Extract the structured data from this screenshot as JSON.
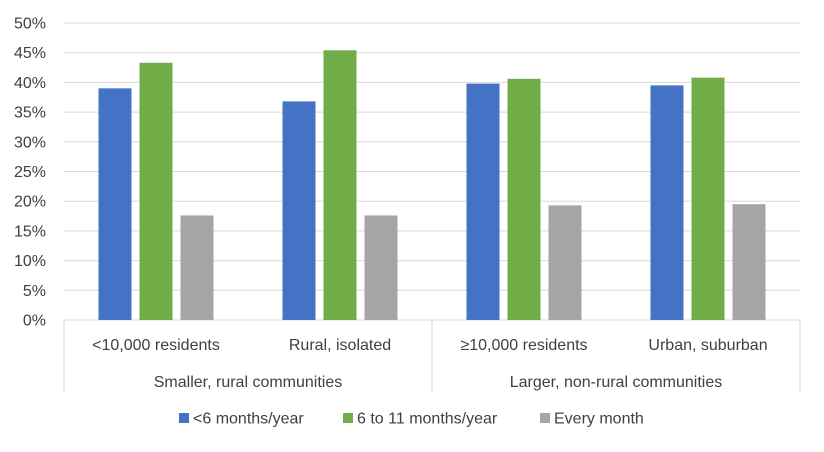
{
  "chart_data": {
    "type": "bar",
    "categories": [
      "<10,000 residents",
      "Rural, isolated",
      "≥10,000 residents",
      "Urban, suburban"
    ],
    "groups": [
      {
        "label": "Smaller, rural communities",
        "categories": [
          0,
          1
        ]
      },
      {
        "label": "Larger, non-rural communities",
        "categories": [
          2,
          3
        ]
      }
    ],
    "series": [
      {
        "name": "<6 months/year",
        "color": "#4472C4",
        "values": [
          0.39,
          0.368,
          0.398,
          0.395
        ]
      },
      {
        "name": "6 to 11 months/year",
        "color": "#70AD47",
        "values": [
          0.433,
          0.454,
          0.406,
          0.408
        ]
      },
      {
        "name": "Every month",
        "color": "#A5A5A5",
        "values": [
          0.176,
          0.176,
          0.193,
          0.195
        ]
      }
    ],
    "ylim": [
      0,
      0.5
    ],
    "yticks": [
      "0%",
      "5%",
      "10%",
      "15%",
      "20%",
      "25%",
      "30%",
      "35%",
      "40%",
      "45%",
      "50%"
    ],
    "grid": true,
    "legend": "bottom",
    "gridline_color": "#D9D9D9"
  }
}
